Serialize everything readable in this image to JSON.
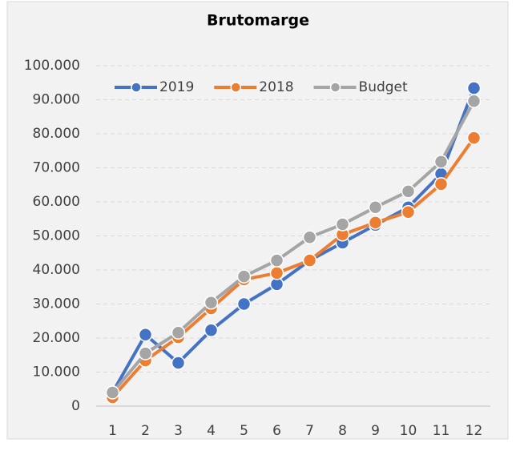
{
  "chart_data": {
    "type": "line",
    "title": "Brutomarge",
    "categories": [
      "1",
      "2",
      "3",
      "4",
      "5",
      "6",
      "7",
      "8",
      "9",
      "10",
      "11",
      "12"
    ],
    "series": [
      {
        "name": "2019",
        "color": "#4472c4",
        "values": [
          4000,
          21000,
          12700,
          22300,
          30000,
          35800,
          42800,
          48000,
          53200,
          58400,
          68200,
          93400
        ]
      },
      {
        "name": "2018",
        "color": "#ed7d31",
        "values": [
          2600,
          13400,
          20200,
          28700,
          37200,
          39100,
          42800,
          50400,
          53900,
          57000,
          65200,
          78800
        ]
      },
      {
        "name": "Budget",
        "color": "#a5a5a5",
        "values": [
          4000,
          15500,
          21600,
          30400,
          38100,
          42800,
          49600,
          53400,
          58400,
          63100,
          71800,
          89600
        ]
      }
    ],
    "ylim": [
      0,
      100000
    ],
    "yticks": [
      0,
      {
        "value": 10000,
        "label": "10.000"
      },
      {
        "value": 20000,
        "label": "20.000"
      },
      {
        "value": 30000,
        "label": "30.000"
      },
      {
        "value": 40000,
        "label": "40.000"
      },
      {
        "value": 50000,
        "label": "50.000"
      },
      {
        "value": 60000,
        "label": "60.000"
      },
      {
        "value": 70000,
        "label": "70.000"
      },
      {
        "value": 80000,
        "label": "80.000"
      },
      {
        "value": 90000,
        "label": "90.000"
      },
      {
        "value": 100000,
        "label": "100.000"
      }
    ],
    "grid": true,
    "legend": "top-left"
  }
}
